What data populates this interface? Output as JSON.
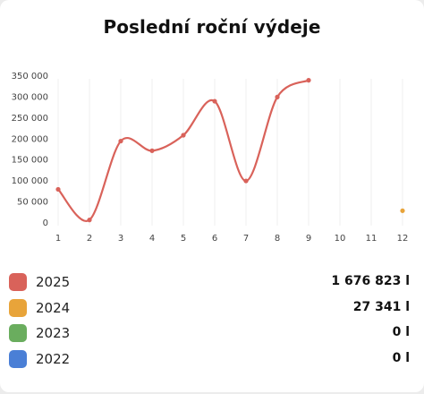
{
  "title": "Poslední roční výdeje",
  "chart_data": {
    "type": "line",
    "title": "Poslední roční výdeje",
    "x": [
      1,
      2,
      3,
      4,
      5,
      6,
      7,
      8,
      9,
      10,
      11,
      12
    ],
    "ylim": [
      0,
      350000
    ],
    "y_ticks": [
      0,
      50000,
      100000,
      150000,
      200000,
      250000,
      300000,
      350000
    ],
    "y_tick_labels": [
      "0",
      "50 000",
      "100 000",
      "150 000",
      "200 000",
      "250 000",
      "300 000",
      "350 000"
    ],
    "x_tick_labels": [
      "1",
      "2",
      "3",
      "4",
      "5",
      "6",
      "7",
      "8",
      "9",
      "10",
      "11",
      "12"
    ],
    "grid": "vertical",
    "series": [
      {
        "name": "2025",
        "color": "#d9625a",
        "x": [
          1,
          2,
          3,
          4,
          5,
          6,
          7,
          8,
          9
        ],
        "values": [
          78000,
          5000,
          193000,
          170000,
          207000,
          288000,
          98000,
          298000,
          338000
        ]
      },
      {
        "name": "2024",
        "color": "#e8a43a",
        "x": [
          12
        ],
        "values": [
          27000
        ]
      },
      {
        "name": "2023",
        "color": "#6aad5e",
        "x": [],
        "values": []
      },
      {
        "name": "2022",
        "color": "#4a7fd6",
        "x": [],
        "values": []
      }
    ]
  },
  "legend": [
    {
      "year": "2025",
      "total": "1 676 823 l",
      "color": "#d9625a"
    },
    {
      "year": "2024",
      "total": "27 341 l",
      "color": "#e8a43a"
    },
    {
      "year": "2023",
      "total": "0 l",
      "color": "#6aad5e"
    },
    {
      "year": "2022",
      "total": "0 l",
      "color": "#4a7fd6"
    }
  ]
}
